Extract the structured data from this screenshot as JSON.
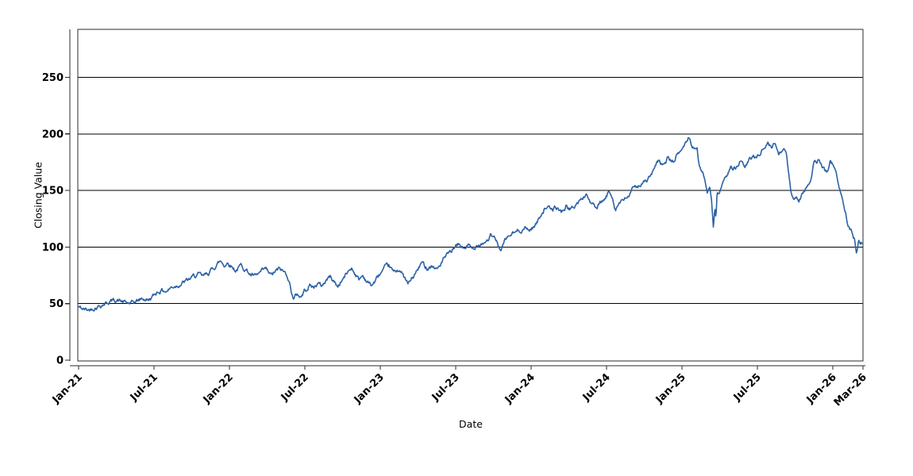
{
  "chart_data": {
    "type": "line",
    "title": "",
    "xlabel": "Date",
    "ylabel": "Closing Value",
    "legend": "none",
    "grid": "horizontal",
    "colors": {
      "line": "#2b61a6",
      "grid": "#000000",
      "frame": "#2b2b2b",
      "axis": "#2b2b2b",
      "text": "#000000",
      "background": "#ffffff"
    },
    "x_axis": {
      "unit": "months since Jan-2021",
      "range_months": [
        0,
        62.4
      ],
      "ticks": [
        {
          "label": "Jan-21",
          "month": 0
        },
        {
          "label": "Jul-21",
          "month": 6
        },
        {
          "label": "Jan-22",
          "month": 12
        },
        {
          "label": "Jul-22",
          "month": 18
        },
        {
          "label": "Jan-23",
          "month": 24
        },
        {
          "label": "Jul-23",
          "month": 30
        },
        {
          "label": "Jan-24",
          "month": 36
        },
        {
          "label": "Jul-24",
          "month": 42
        },
        {
          "label": "Jan-25",
          "month": 48
        },
        {
          "label": "Jul-25",
          "month": 54
        },
        {
          "label": "Jan-26",
          "month": 60
        },
        {
          "label": "Mar-26",
          "month": 62.4
        }
      ]
    },
    "y_axis": {
      "ticks": [
        0,
        50,
        100,
        150,
        200,
        250
      ],
      "range": [
        0,
        292
      ]
    },
    "series": [
      {
        "name": "Closing Value",
        "color": "#2b61a6",
        "anchor_format": "[months_since_Jan2021, closing_value]",
        "anchors": [
          [
            0,
            47
          ],
          [
            0.4,
            44.8
          ],
          [
            0.8,
            44.3
          ],
          [
            1.2,
            46.5
          ],
          [
            1.7,
            48.5
          ],
          [
            2.1,
            50.5
          ],
          [
            2.5,
            52
          ],
          [
            3,
            53.5
          ],
          [
            3.4,
            52
          ],
          [
            3.8,
            50.5
          ],
          [
            4.2,
            49.8
          ],
          [
            4.7,
            52.5
          ],
          [
            5.1,
            54.5
          ],
          [
            5.5,
            53
          ],
          [
            5.9,
            56
          ],
          [
            6.2,
            60
          ],
          [
            6.6,
            62
          ],
          [
            7,
            61
          ],
          [
            7.4,
            64.5
          ],
          [
            7.8,
            66.5
          ],
          [
            8.2,
            68
          ],
          [
            8.7,
            70.5
          ],
          [
            9.1,
            73.5
          ],
          [
            9.5,
            75.5
          ],
          [
            9.9,
            73.5
          ],
          [
            10.3,
            77
          ],
          [
            10.7,
            81
          ],
          [
            11,
            85
          ],
          [
            11.3,
            87.5
          ],
          [
            11.6,
            84
          ],
          [
            11.9,
            86.5
          ],
          [
            12.2,
            83
          ],
          [
            12.5,
            79.5
          ],
          [
            12.9,
            83.5
          ],
          [
            13.3,
            80.5
          ],
          [
            13.7,
            75.5
          ],
          [
            14.1,
            73.5
          ],
          [
            14.5,
            77.5
          ],
          [
            14.9,
            80
          ],
          [
            15.3,
            74.5
          ],
          [
            15.7,
            78.5
          ],
          [
            16,
            80.5
          ],
          [
            16.3,
            78
          ],
          [
            16.6,
            76
          ],
          [
            16.9,
            63
          ],
          [
            17.1,
            54
          ],
          [
            17.4,
            58.5
          ],
          [
            17.7,
            56
          ],
          [
            18,
            62
          ],
          [
            18.4,
            66.5
          ],
          [
            18.7,
            64
          ],
          [
            19,
            68
          ],
          [
            19.35,
            65.5
          ],
          [
            19.7,
            71
          ],
          [
            20,
            74
          ],
          [
            20.3,
            70
          ],
          [
            20.6,
            65
          ],
          [
            20.9,
            70
          ],
          [
            21.3,
            76
          ],
          [
            21.7,
            82
          ],
          [
            22,
            77
          ],
          [
            22.3,
            71
          ],
          [
            22.6,
            75
          ],
          [
            23,
            69
          ],
          [
            23.3,
            66
          ],
          [
            23.6,
            70
          ],
          [
            23.9,
            75
          ],
          [
            24.3,
            80
          ],
          [
            24.7,
            83
          ],
          [
            25.1,
            77
          ],
          [
            25.5,
            81
          ],
          [
            25.9,
            73
          ],
          [
            26.2,
            67
          ],
          [
            26.6,
            73
          ],
          [
            27,
            80
          ],
          [
            27.3,
            86
          ],
          [
            27.7,
            82
          ],
          [
            28.1,
            84
          ],
          [
            28.5,
            80
          ],
          [
            28.8,
            85
          ],
          [
            29.1,
            90
          ],
          [
            29.5,
            94
          ],
          [
            30,
            100
          ],
          [
            30.3,
            102
          ],
          [
            30.6,
            99
          ],
          [
            31,
            101
          ],
          [
            31.4,
            97
          ],
          [
            31.7,
            103
          ],
          [
            32.1,
            104
          ],
          [
            32.5,
            106
          ],
          [
            32.8,
            110
          ],
          [
            33.2,
            106
          ],
          [
            33.6,
            97
          ],
          [
            34,
            107
          ],
          [
            34.4,
            111
          ],
          [
            34.8,
            113
          ],
          [
            35.1,
            115
          ],
          [
            35.5,
            117
          ],
          [
            35.8,
            115
          ],
          [
            36.2,
            118
          ],
          [
            36.5,
            122
          ],
          [
            36.8,
            130
          ],
          [
            37.2,
            136
          ],
          [
            37.6,
            132
          ],
          [
            38,
            135
          ],
          [
            38.4,
            131
          ],
          [
            38.8,
            136
          ],
          [
            39.2,
            133
          ],
          [
            39.6,
            138
          ],
          [
            40,
            142
          ],
          [
            40.4,
            147
          ],
          [
            40.8,
            138
          ],
          [
            41.2,
            134
          ],
          [
            41.6,
            139
          ],
          [
            41.9,
            142
          ],
          [
            42.2,
            149
          ],
          [
            42.45,
            146
          ],
          [
            42.7,
            134
          ],
          [
            43,
            139
          ],
          [
            43.4,
            141
          ],
          [
            43.8,
            146
          ],
          [
            44.2,
            152
          ],
          [
            44.6,
            156
          ],
          [
            44.9,
            156
          ],
          [
            45.3,
            160
          ],
          [
            45.7,
            166
          ],
          [
            46.1,
            175
          ],
          [
            46.5,
            172
          ],
          [
            46.9,
            179
          ],
          [
            47.3,
            175
          ],
          [
            47.6,
            181
          ],
          [
            47.9,
            185
          ],
          [
            48.3,
            192
          ],
          [
            48.55,
            198
          ],
          [
            48.8,
            190
          ],
          [
            49.2,
            186
          ],
          [
            49.4,
            170
          ],
          [
            49.6,
            168
          ],
          [
            49.8,
            162
          ],
          [
            50,
            146
          ],
          [
            50.2,
            150
          ],
          [
            50.35,
            143
          ],
          [
            50.5,
            117
          ],
          [
            50.62,
            133
          ],
          [
            50.7,
            122
          ],
          [
            50.8,
            148
          ],
          [
            51,
            147
          ],
          [
            51.3,
            155
          ],
          [
            51.6,
            164
          ],
          [
            51.9,
            172
          ],
          [
            52.3,
            169
          ],
          [
            52.6,
            175
          ],
          [
            53,
            171
          ],
          [
            53.4,
            177
          ],
          [
            53.7,
            180
          ],
          [
            54,
            181
          ],
          [
            54.2,
            184
          ],
          [
            54.5,
            187
          ],
          [
            54.8,
            192
          ],
          [
            55.1,
            188
          ],
          [
            55.4,
            193
          ],
          [
            55.7,
            183
          ],
          [
            56,
            188
          ],
          [
            56.3,
            183
          ],
          [
            56.5,
            163
          ],
          [
            56.7,
            146
          ],
          [
            56.9,
            143
          ],
          [
            57.1,
            146
          ],
          [
            57.3,
            142
          ],
          [
            57.6,
            148
          ],
          [
            57.9,
            154
          ],
          [
            58.2,
            156
          ],
          [
            58.5,
            173
          ],
          [
            58.9,
            177
          ],
          [
            59.2,
            169
          ],
          [
            59.5,
            166
          ],
          [
            59.8,
            176
          ],
          [
            60.1,
            171
          ],
          [
            60.4,
            159
          ],
          [
            60.6,
            149
          ],
          [
            60.8,
            139
          ],
          [
            61,
            133
          ],
          [
            61.2,
            122
          ],
          [
            61.4,
            117
          ],
          [
            61.55,
            112
          ],
          [
            61.75,
            106
          ],
          [
            61.87,
            97
          ],
          [
            62.05,
            107
          ],
          [
            62.2,
            104
          ],
          [
            62.4,
            105.5
          ]
        ]
      }
    ],
    "render": {
      "points_per_month": 21,
      "noise_persistence": 0.75,
      "noise_step": 3.0,
      "seed": 42,
      "value_clamp": [
        43.5,
        199
      ],
      "line_width": 1.6
    }
  }
}
